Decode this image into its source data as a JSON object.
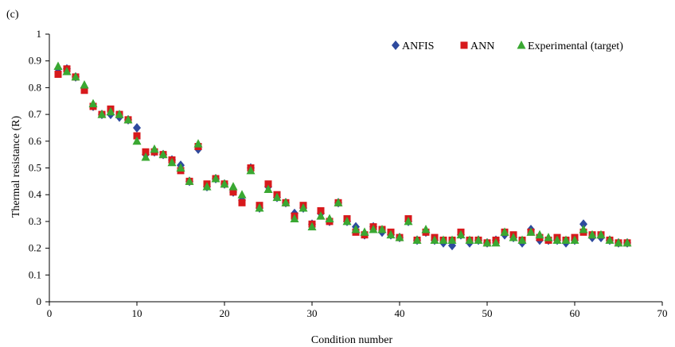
{
  "panel_label": "(c)",
  "chart_data": {
    "type": "scatter",
    "xlabel": "Condition number",
    "ylabel": "Thermal resistance (R)",
    "xlim": [
      0,
      70
    ],
    "ylim": [
      0,
      1
    ],
    "x_ticks": [
      0,
      10,
      20,
      30,
      40,
      50,
      60,
      70
    ],
    "y_ticks": [
      0,
      0.1,
      0.2,
      0.3,
      0.4,
      0.5,
      0.6,
      0.7,
      0.8,
      0.9,
      1
    ],
    "grid": false,
    "legend_position": "top-right",
    "x": [
      1,
      2,
      3,
      4,
      5,
      6,
      7,
      8,
      9,
      10,
      11,
      12,
      13,
      14,
      15,
      16,
      17,
      18,
      19,
      20,
      21,
      22,
      23,
      24,
      25,
      26,
      27,
      28,
      29,
      30,
      31,
      32,
      33,
      34,
      35,
      36,
      37,
      38,
      39,
      40,
      41,
      42,
      43,
      44,
      45,
      46,
      47,
      48,
      49,
      50,
      51,
      52,
      53,
      54,
      55,
      56,
      57,
      58,
      59,
      60,
      61,
      62,
      63,
      64,
      65,
      66
    ],
    "series": [
      {
        "name": "ANFIS",
        "marker": "diamond",
        "color": "#2e4a9e",
        "values": [
          0.87,
          0.87,
          0.84,
          0.8,
          0.73,
          0.7,
          0.7,
          0.69,
          0.68,
          0.65,
          0.55,
          0.56,
          0.55,
          0.53,
          0.51,
          0.45,
          0.57,
          0.43,
          0.46,
          0.44,
          0.41,
          0.38,
          0.5,
          0.35,
          0.43,
          0.39,
          0.37,
          0.33,
          0.35,
          0.29,
          0.33,
          0.3,
          0.37,
          0.3,
          0.28,
          0.25,
          0.28,
          0.26,
          0.25,
          0.24,
          0.3,
          0.23,
          0.26,
          0.23,
          0.22,
          0.21,
          0.25,
          0.22,
          0.23,
          0.22,
          0.23,
          0.25,
          0.24,
          0.22,
          0.27,
          0.23,
          0.23,
          0.23,
          0.22,
          0.23,
          0.29,
          0.24,
          0.24,
          0.23,
          0.22,
          0.22
        ]
      },
      {
        "name": "ANN",
        "marker": "square",
        "color": "#d7191c",
        "values": [
          0.85,
          0.87,
          0.84,
          0.79,
          0.73,
          0.7,
          0.72,
          0.7,
          0.68,
          0.62,
          0.56,
          0.56,
          0.55,
          0.53,
          0.49,
          0.45,
          0.58,
          0.44,
          0.46,
          0.44,
          0.41,
          0.37,
          0.5,
          0.36,
          0.44,
          0.4,
          0.37,
          0.32,
          0.36,
          0.29,
          0.34,
          0.3,
          0.37,
          0.31,
          0.26,
          0.25,
          0.28,
          0.27,
          0.26,
          0.24,
          0.31,
          0.23,
          0.26,
          0.24,
          0.23,
          0.23,
          0.26,
          0.23,
          0.23,
          0.22,
          0.23,
          0.26,
          0.25,
          0.23,
          0.26,
          0.24,
          0.23,
          0.24,
          0.23,
          0.24,
          0.26,
          0.25,
          0.25,
          0.23,
          0.22,
          0.22
        ]
      },
      {
        "name": "Experimental (target)",
        "marker": "triangle",
        "color": "#3aa832",
        "values": [
          0.88,
          0.86,
          0.84,
          0.81,
          0.74,
          0.7,
          0.71,
          0.7,
          0.68,
          0.6,
          0.54,
          0.57,
          0.55,
          0.52,
          0.5,
          0.45,
          0.59,
          0.43,
          0.46,
          0.44,
          0.43,
          0.4,
          0.49,
          0.35,
          0.42,
          0.39,
          0.37,
          0.31,
          0.35,
          0.28,
          0.32,
          0.31,
          0.37,
          0.3,
          0.27,
          0.26,
          0.27,
          0.27,
          0.25,
          0.24,
          0.3,
          0.23,
          0.27,
          0.23,
          0.23,
          0.23,
          0.25,
          0.23,
          0.23,
          0.22,
          0.22,
          0.26,
          0.24,
          0.23,
          0.26,
          0.25,
          0.24,
          0.23,
          0.23,
          0.23,
          0.27,
          0.25,
          0.25,
          0.23,
          0.22,
          0.22
        ]
      }
    ]
  }
}
